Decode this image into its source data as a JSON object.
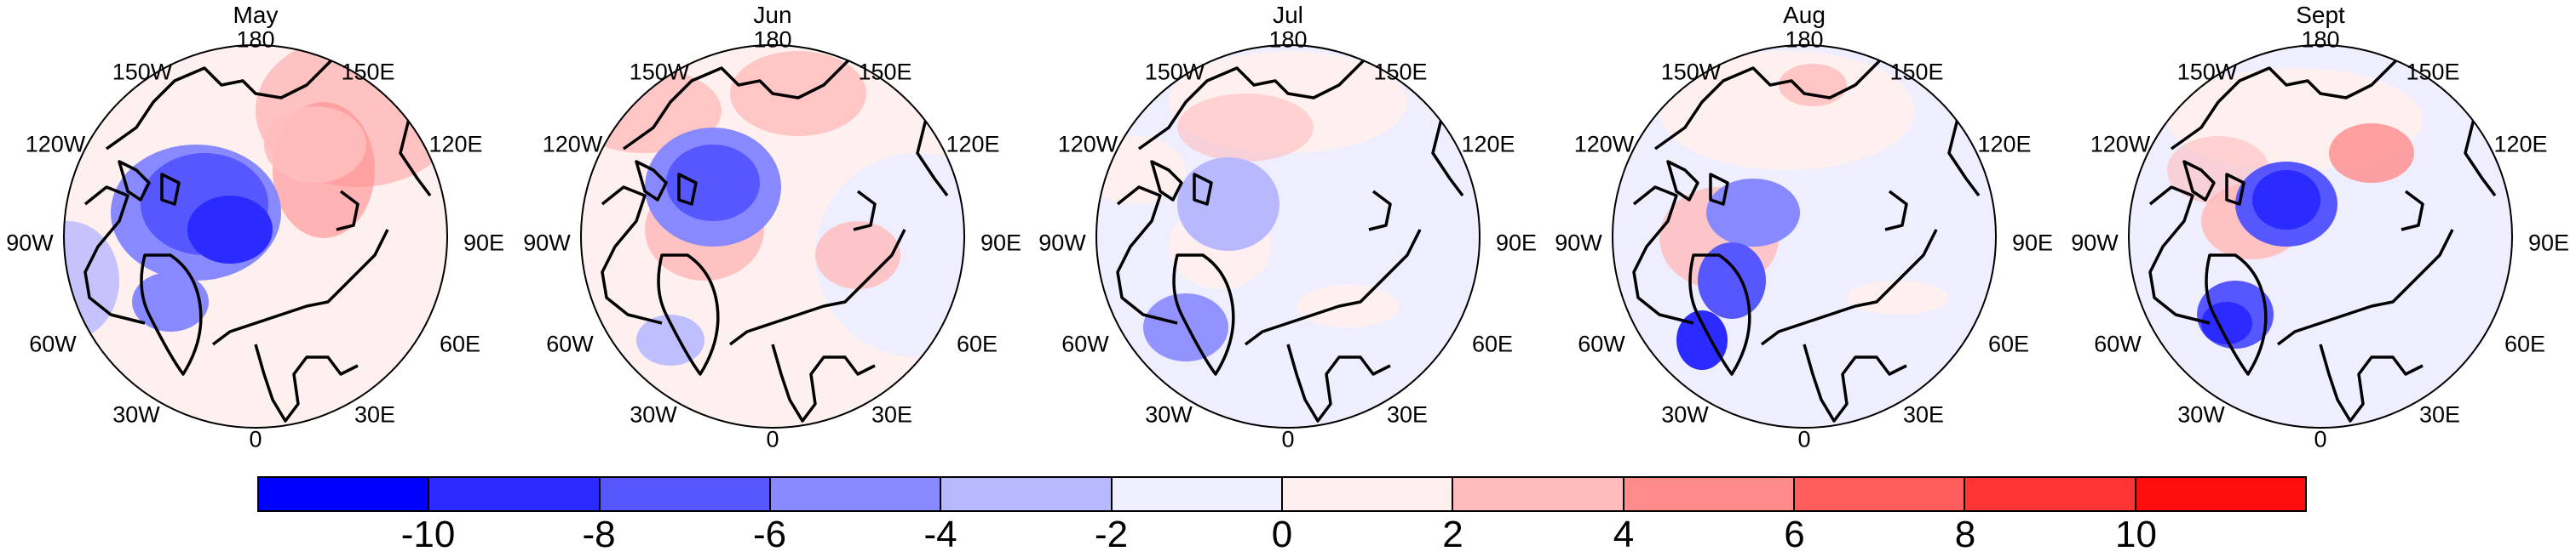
{
  "panels": [
    {
      "title": "May",
      "labels": {
        "n": "180",
        "s": "0",
        "nw150": "150W",
        "ne150": "150E",
        "w120": "120W",
        "e120": "120E",
        "w90": "90W",
        "e90": "90E",
        "w60": "60W",
        "e60": "60E",
        "w30": "30W",
        "e30": "30E"
      }
    },
    {
      "title": "Jun",
      "labels": {
        "n": "180",
        "s": "0",
        "nw150": "150W",
        "ne150": "150E",
        "w120": "120W",
        "e120": "120E",
        "w90": "90W",
        "e90": "90E",
        "w60": "60W",
        "e60": "60E",
        "w30": "30W",
        "e30": "30E"
      }
    },
    {
      "title": "Jul",
      "labels": {
        "n": "180",
        "s": "0",
        "nw150": "150W",
        "ne150": "150E",
        "w120": "120W",
        "e120": "120E",
        "w90": "90W",
        "e90": "90E",
        "w60": "60W",
        "e60": "60E",
        "w30": "30W",
        "e30": "30E"
      }
    },
    {
      "title": "Aug",
      "labels": {
        "n": "180",
        "s": "0",
        "nw150": "150W",
        "ne150": "150E",
        "w120": "120W",
        "e120": "120E",
        "w90": "90W",
        "e90": "90E",
        "w60": "60W",
        "e60": "60E",
        "w30": "30W",
        "e30": "30E"
      }
    },
    {
      "title": "Sept",
      "labels": {
        "n": "180",
        "s": "0",
        "nw150": "150W",
        "ne150": "150E",
        "w120": "120W",
        "e120": "120E",
        "w90": "90W",
        "e90": "90E",
        "w60": "60W",
        "e60": "60E",
        "w30": "30W",
        "e30": "30E"
      }
    }
  ],
  "colorbar": {
    "tick_labels": [
      "-10",
      "-8",
      "-6",
      "-4",
      "-2",
      "0",
      "2",
      "4",
      "6",
      "8",
      "10"
    ],
    "colors": [
      "#0000ff",
      "#2b2bff",
      "#5757ff",
      "#8888ff",
      "#b8b8ff",
      "#eeeeff",
      "#fff0f0",
      "#ffbcbc",
      "#ff8b8b",
      "#ff5c5c",
      "#ff3434",
      "#ff0c0c"
    ]
  }
}
